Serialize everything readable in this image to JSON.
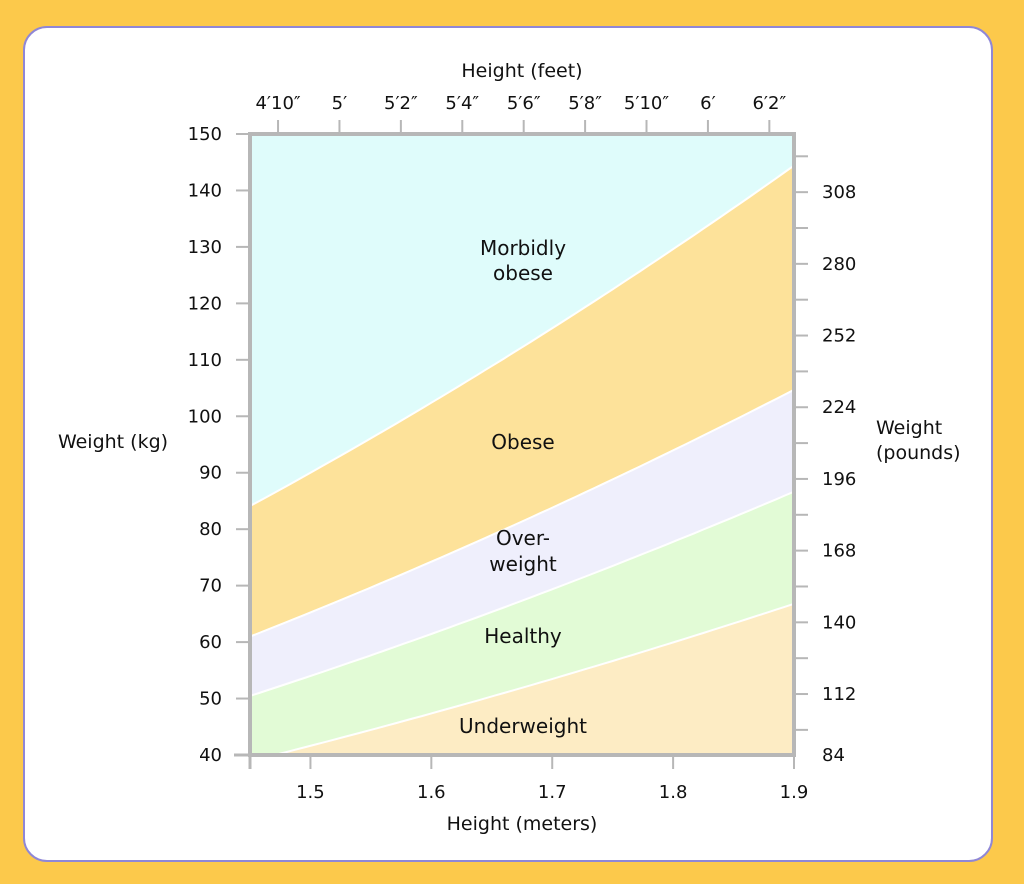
{
  "colors": {
    "frame": "#fcc94b",
    "card_border": "#8f87d6",
    "axis": "#b7b7b7",
    "underweight": "#fdecc4",
    "healthy": "#e2fbd6",
    "overweight": "#efeffc",
    "obese": "#fde29a",
    "morbidly_obese": "#dffcfb",
    "boundary": "#ffffff"
  },
  "chart_data": {
    "type": "area",
    "title": "",
    "x_bottom": {
      "label": "Height (meters)",
      "range": [
        1.45,
        1.9
      ],
      "ticks": [
        1.5,
        1.6,
        1.7,
        1.8,
        1.9
      ],
      "tick_labels": [
        "1.5",
        "1.6",
        "1.7",
        "1.8",
        "1.9"
      ]
    },
    "x_top": {
      "label": "Height (feet)",
      "ticks_meters": [
        1.4732,
        1.524,
        1.5748,
        1.6256,
        1.6764,
        1.7272,
        1.778,
        1.8288,
        1.8796
      ],
      "tick_labels": [
        "4′10″",
        "5′",
        "5′2″",
        "5′4″",
        "5′6″",
        "5′8″",
        "5′10″",
        "6′",
        "6′2″"
      ]
    },
    "y_left": {
      "label": "Weight (kg)",
      "range": [
        40,
        150
      ],
      "ticks": [
        40,
        50,
        60,
        70,
        80,
        90,
        100,
        110,
        120,
        130,
        140,
        150
      ],
      "tick_labels": [
        "40",
        "50",
        "60",
        "70",
        "80",
        "90",
        "100",
        "110",
        "120",
        "130",
        "140",
        "150"
      ]
    },
    "y_right": {
      "label_line1": "Weight",
      "label_line2": "(pounds)",
      "ticks_kg": [
        38.1,
        44.45,
        50.8,
        57.15,
        63.5,
        69.85,
        76.2,
        82.55,
        88.9,
        95.25,
        101.6,
        107.95,
        114.3,
        120.65,
        127.0,
        133.35,
        139.7,
        146.05
      ],
      "labeled_kg": [
        38.1,
        50.8,
        63.5,
        76.2,
        88.9,
        101.6,
        114.3,
        127.0,
        139.7
      ],
      "tick_labels": [
        "84",
        "112",
        "140",
        "168",
        "196",
        "224",
        "252",
        "280",
        "308"
      ]
    },
    "boundaries_bmi": [
      18.5,
      24,
      29,
      40
    ],
    "regions": [
      {
        "name": "Underweight",
        "bmi_range": [
          0,
          18.5
        ]
      },
      {
        "name": "Healthy",
        "bmi_range": [
          18.5,
          24
        ]
      },
      {
        "name": "Over-weight",
        "bmi_range": [
          24,
          29
        ]
      },
      {
        "name": "Obese",
        "bmi_range": [
          29,
          40
        ]
      },
      {
        "name": "Morbidly obese",
        "bmi_range": [
          40,
          999
        ]
      }
    ],
    "region_labels": {
      "morbidly_line1": "Morbidly",
      "morbidly_line2": "obese",
      "obese": "Obese",
      "over_line1": "Over-",
      "over_line2": "weight",
      "healthy": "Healthy",
      "underweight": "Underweight"
    },
    "grid": false,
    "legend": "none"
  }
}
